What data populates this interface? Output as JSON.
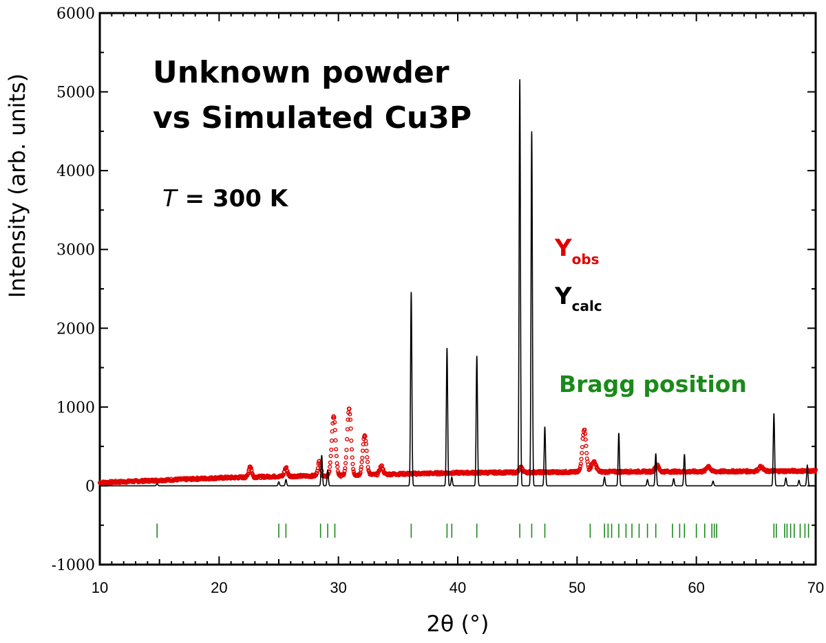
{
  "chart_data": {
    "type": "line",
    "title_line1": "Unknown powder",
    "title_line2": "vs Simulated Cu3P",
    "temperature": {
      "symbol": "T",
      "value": " = 300 K"
    },
    "xlabel": "2θ  (°)",
    "ylabel": "Intensity (arb. units)",
    "xlim": [
      10,
      70
    ],
    "ylim": [
      -1000,
      6000
    ],
    "xticks": [
      10,
      20,
      30,
      40,
      50,
      60,
      70
    ],
    "yticks": [
      -1000,
      0,
      1000,
      2000,
      3000,
      4000,
      5000,
      6000
    ],
    "colors": {
      "obs": "#e00000",
      "calc": "#000000",
      "bragg": "#1a8a1a"
    },
    "legend": {
      "obs": {
        "main": "Y",
        "sub": "obs"
      },
      "calc": {
        "main": "Y",
        "sub": "calc"
      },
      "bragg": "Bragg position"
    },
    "series_obs": {
      "name": "Yobs",
      "baseline": [
        [
          10,
          40
        ],
        [
          15,
          70
        ],
        [
          20,
          100
        ],
        [
          25,
          120
        ],
        [
          30,
          130
        ],
        [
          35,
          150
        ],
        [
          40,
          165
        ],
        [
          45,
          170
        ],
        [
          50,
          175
        ],
        [
          55,
          180
        ],
        [
          60,
          180
        ],
        [
          65,
          185
        ],
        [
          70,
          190
        ]
      ],
      "peaks": [
        {
          "pos": 22.6,
          "height": 250,
          "width": 0.12
        },
        {
          "pos": 25.6,
          "height": 230,
          "width": 0.12
        },
        {
          "pos": 28.4,
          "height": 310,
          "width": 0.12
        },
        {
          "pos": 29.6,
          "height": 880,
          "width": 0.16
        },
        {
          "pos": 30.9,
          "height": 980,
          "width": 0.16
        },
        {
          "pos": 32.2,
          "height": 640,
          "width": 0.16
        },
        {
          "pos": 33.6,
          "height": 250,
          "width": 0.14
        },
        {
          "pos": 45.3,
          "height": 230,
          "width": 0.14
        },
        {
          "pos": 50.6,
          "height": 720,
          "width": 0.16
        },
        {
          "pos": 51.4,
          "height": 300,
          "width": 0.2
        },
        {
          "pos": 56.7,
          "height": 260,
          "width": 0.16
        },
        {
          "pos": 61.0,
          "height": 250,
          "width": 0.16
        },
        {
          "pos": 65.4,
          "height": 240,
          "width": 0.18
        }
      ]
    },
    "series_calc": {
      "name": "Ycalc",
      "peaks": [
        {
          "pos": 14.8,
          "height": 30
        },
        {
          "pos": 25.0,
          "height": 50
        },
        {
          "pos": 25.6,
          "height": 80
        },
        {
          "pos": 28.6,
          "height": 390
        },
        {
          "pos": 29.1,
          "height": 200
        },
        {
          "pos": 36.1,
          "height": 2460
        },
        {
          "pos": 39.1,
          "height": 1750
        },
        {
          "pos": 39.5,
          "height": 110
        },
        {
          "pos": 41.6,
          "height": 1650
        },
        {
          "pos": 45.2,
          "height": 5160
        },
        {
          "pos": 46.2,
          "height": 4500
        },
        {
          "pos": 47.3,
          "height": 750
        },
        {
          "pos": 52.3,
          "height": 110
        },
        {
          "pos": 53.5,
          "height": 670
        },
        {
          "pos": 55.9,
          "height": 80
        },
        {
          "pos": 56.6,
          "height": 410
        },
        {
          "pos": 58.1,
          "height": 90
        },
        {
          "pos": 59.0,
          "height": 400
        },
        {
          "pos": 61.4,
          "height": 60
        },
        {
          "pos": 66.5,
          "height": 920
        },
        {
          "pos": 67.5,
          "height": 100
        },
        {
          "pos": 68.6,
          "height": 70
        },
        {
          "pos": 69.3,
          "height": 260
        }
      ]
    },
    "bragg_positions": [
      14.8,
      25.0,
      25.6,
      28.5,
      29.1,
      29.7,
      36.1,
      39.1,
      39.5,
      41.6,
      45.2,
      46.2,
      47.3,
      51.1,
      52.3,
      52.6,
      52.9,
      53.5,
      54.1,
      54.6,
      55.2,
      55.9,
      56.6,
      58.0,
      58.6,
      59.0,
      60.0,
      60.7,
      61.3,
      61.5,
      61.7,
      66.5,
      66.7,
      67.4,
      67.6,
      67.9,
      68.2,
      68.7,
      69.1,
      69.4
    ]
  }
}
